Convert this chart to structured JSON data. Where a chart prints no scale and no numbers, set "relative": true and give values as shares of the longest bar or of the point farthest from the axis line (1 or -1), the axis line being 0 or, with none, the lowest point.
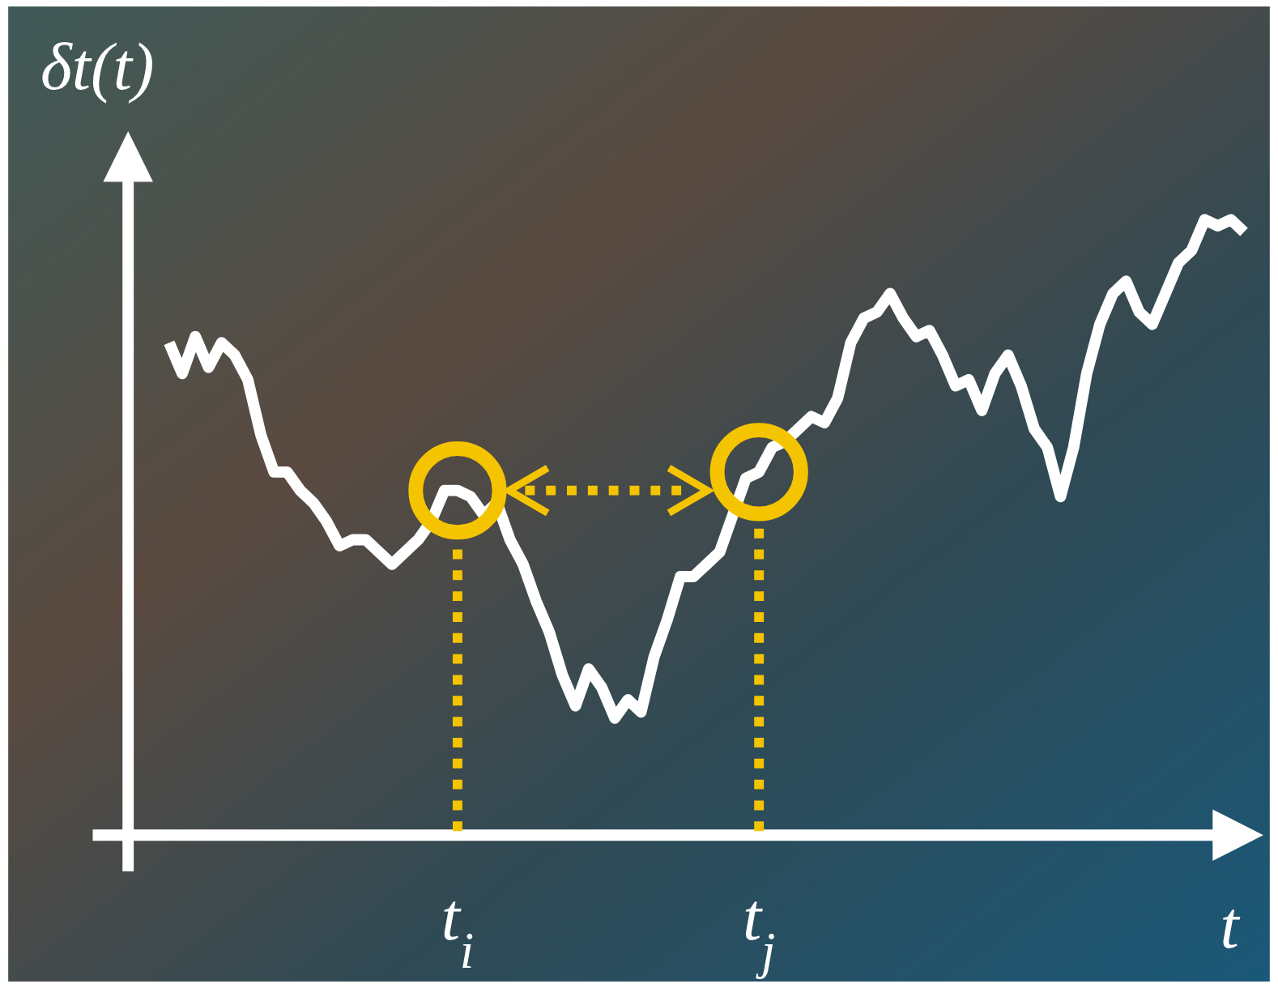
{
  "chart_data": {
    "type": "line",
    "relative": true,
    "ylabel": "δt(t)",
    "xlabel": "t",
    "tick_labels": "x",
    "categories": [
      null,
      null,
      null,
      null,
      null,
      null,
      null,
      null,
      null,
      null,
      null,
      null,
      null,
      null,
      null,
      null,
      null,
      null,
      null,
      null,
      null,
      null,
      "t$_{i}$",
      null,
      null,
      null,
      null,
      null,
      null,
      null,
      null,
      null,
      null,
      null,
      null,
      null,
      null,
      null,
      null,
      null,
      null,
      null,
      null,
      null,
      null,
      "t$_{j}$",
      null,
      null,
      null,
      null,
      null,
      null,
      null,
      null,
      null,
      null,
      null,
      null,
      null,
      null,
      null,
      null,
      null,
      null,
      null,
      null,
      null,
      null,
      null,
      null,
      null,
      null,
      null,
      null,
      null,
      null,
      null,
      null,
      null,
      null,
      null,
      null,
      null
    ],
    "series": [
      {
        "color": "#ffffff",
        "values": [
          0.8,
          0.75,
          0.81,
          0.76,
          0.8,
          0.78,
          0.74,
          0.65,
          0.59,
          0.59,
          0.56,
          0.54,
          0.51,
          0.47,
          0.48,
          0.48,
          0.46,
          0.44,
          0.46,
          0.48,
          0.51,
          0.56,
          0.56,
          0.55,
          0.52,
          0.54,
          0.48,
          0.44,
          0.38,
          0.33,
          0.26,
          0.21,
          0.27,
          0.24,
          0.19,
          0.22,
          0.2,
          0.29,
          0.35,
          0.42,
          0.42,
          0.44,
          0.46,
          0.52,
          0.58,
          0.59,
          0.63,
          0.64,
          0.66,
          0.68,
          0.67,
          0.71,
          0.8,
          0.84,
          0.85,
          0.88,
          0.84,
          0.81,
          0.82,
          0.78,
          0.73,
          0.74,
          0.69,
          0.75,
          0.78,
          0.73,
          0.66,
          0.63,
          0.55,
          0.63,
          0.75,
          0.83,
          0.88,
          0.9,
          0.85,
          0.83,
          0.88,
          0.93,
          0.95,
          1.0,
          0.99,
          1.0,
          0.98
        ]
      }
    ],
    "ref_lines": [
      {
        "axis": "x",
        "value": "t$_{i}$",
        "color": "#f5c400",
        "line_style": "dotted"
      },
      {
        "axis": "x",
        "value": "t$_{j}$",
        "color": "#f5c400",
        "line_style": "dotted"
      }
    ]
  }
}
